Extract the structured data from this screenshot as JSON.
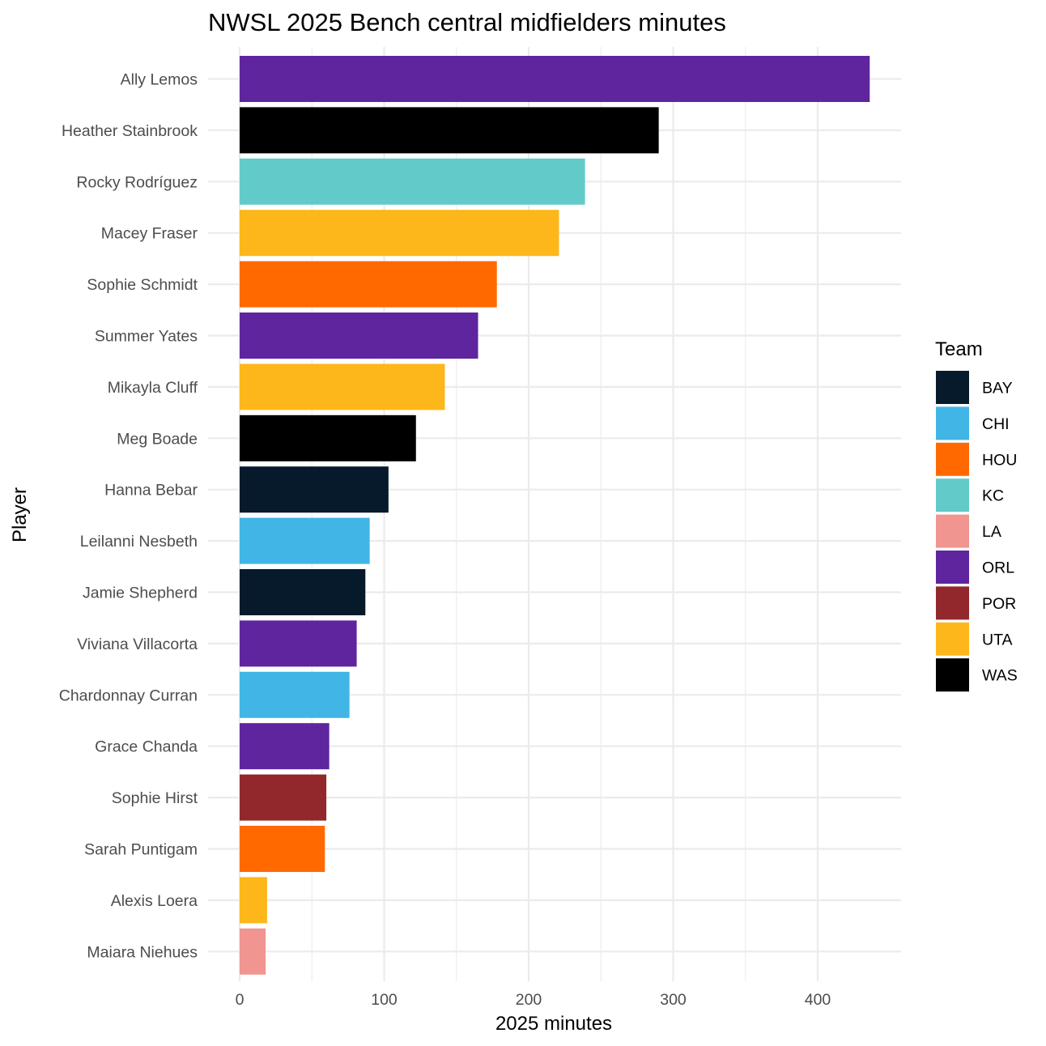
{
  "chart_data": {
    "type": "bar",
    "orientation": "horizontal",
    "title": "NWSL 2025 Bench central midfielders minutes",
    "xlabel": "2025 minutes",
    "ylabel": "Player",
    "xlim": [
      0,
      450
    ],
    "x_ticks": [
      0,
      100,
      200,
      300,
      400
    ],
    "x_tick_labels": [
      "0",
      "100",
      "200",
      "300",
      "400"
    ],
    "grid": true,
    "legend_title": "Team",
    "legend_position": "right",
    "legend": [
      {
        "label": "BAY",
        "color": "#061A2B"
      },
      {
        "label": "CHI",
        "color": "#41B6E6"
      },
      {
        "label": "HOU",
        "color": "#FF6900"
      },
      {
        "label": "KC",
        "color": "#62CBC9"
      },
      {
        "label": "LA",
        "color": "#F09590"
      },
      {
        "label": "ORL",
        "color": "#5F259F"
      },
      {
        "label": "POR",
        "color": "#93282C"
      },
      {
        "label": "UTA",
        "color": "#FDB71A"
      },
      {
        "label": "WAS",
        "color": "#000000"
      }
    ],
    "categories": [
      "Ally Lemos",
      "Heather Stainbrook",
      "Rocky Rodríguez",
      "Macey Fraser",
      "Sophie Schmidt",
      "Summer Yates",
      "Mikayla Cluff",
      "Meg Boade",
      "Hanna Bebar",
      "Leilanni Nesbeth",
      "Jamie Shepherd",
      "Viviana Villacorta",
      "Chardonnay Curran",
      "Grace Chanda",
      "Sophie Hirst",
      "Sarah Puntigam",
      "Alexis Loera",
      "Maiara Niehues"
    ],
    "values": [
      436,
      290,
      239,
      221,
      178,
      165,
      142,
      122,
      103,
      90,
      87,
      81,
      76,
      62,
      60,
      59,
      19,
      18
    ],
    "teams": [
      "ORL",
      "WAS",
      "KC",
      "UTA",
      "HOU",
      "ORL",
      "UTA",
      "WAS",
      "BAY",
      "CHI",
      "BAY",
      "ORL",
      "CHI",
      "ORL",
      "POR",
      "HOU",
      "UTA",
      "LA"
    ]
  }
}
